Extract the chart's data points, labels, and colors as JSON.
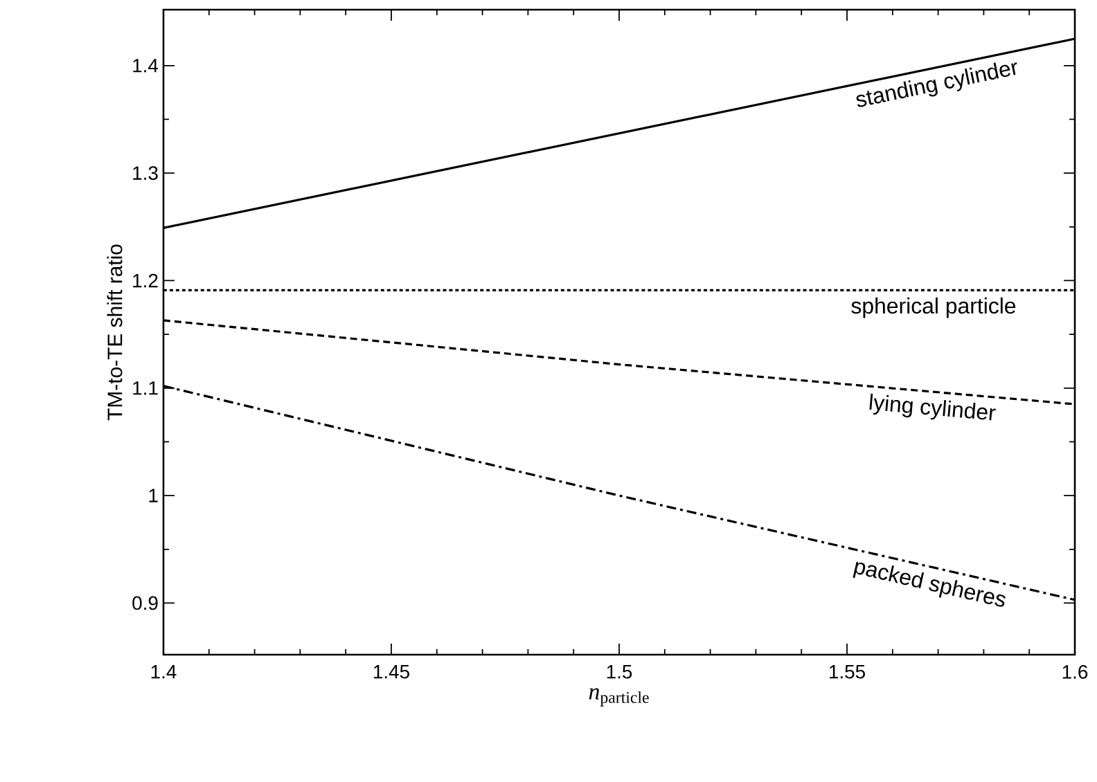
{
  "chart_data": {
    "type": "line",
    "xlabel": "*n*$_{particle}$",
    "ylabel": "TM-to-TE shift ratio",
    "xlim": [
      1.4,
      1.6
    ],
    "ylim": [
      0.852,
      1.452
    ],
    "xticks": [
      1.4,
      1.45,
      1.5,
      1.55,
      1.6
    ],
    "yticks": [
      0.9,
      1,
      1.1,
      1.2,
      1.3,
      1.4
    ],
    "legend": false,
    "grid": false,
    "series": [
      {
        "name": "standing cylinder",
        "color": "#000000",
        "line_style": "solid",
        "x": [
          1.4,
          1.5,
          1.6
        ],
        "values": [
          1.249,
          1.337,
          1.425
        ]
      },
      {
        "name": "spherical particle",
        "color": "#000000",
        "line_style": "dotted",
        "x": [
          1.4,
          1.5,
          1.6
        ],
        "values": [
          1.191,
          1.191,
          1.191
        ]
      },
      {
        "name": "lying cylinder",
        "color": "#000000",
        "line_style": "dashed",
        "x": [
          1.4,
          1.5,
          1.6
        ],
        "values": [
          1.163,
          1.122,
          1.085
        ]
      },
      {
        "name": "packed spheres",
        "color": "#000000",
        "line_style": "dashdot",
        "x": [
          1.4,
          1.5,
          1.6
        ],
        "values": [
          1.102,
          1.0,
          0.903
        ]
      }
    ]
  }
}
